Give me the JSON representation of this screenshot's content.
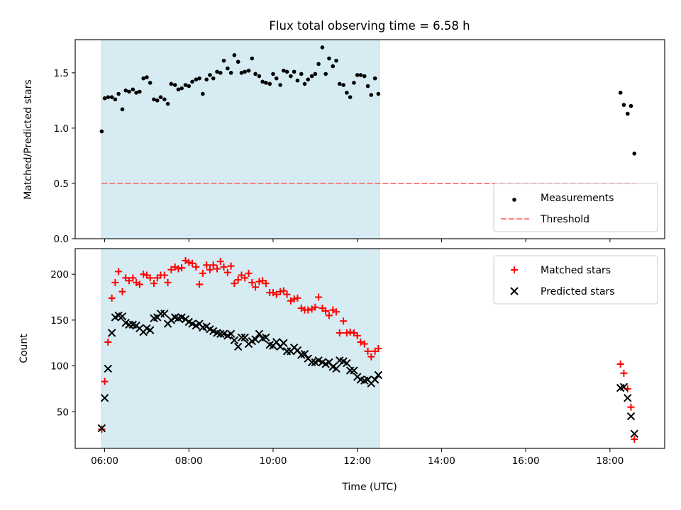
{
  "chart_data": {
    "title": "Flux total observing time = 6.58 h",
    "xlabel": "Time (UTC)",
    "x_unit": "hours UTC",
    "xlim": [
      5.3,
      19.3
    ],
    "x_ticks": [
      {
        "value": 6,
        "label": "06:00"
      },
      {
        "value": 8,
        "label": "08:00"
      },
      {
        "value": 10,
        "label": "10:00"
      },
      {
        "value": 12,
        "label": "12:00"
      },
      {
        "value": 14,
        "label": "14:00"
      },
      {
        "value": 16,
        "label": "16:00"
      },
      {
        "value": 18,
        "label": "18:00"
      }
    ],
    "shaded_span": {
      "x_start": 5.93,
      "x_end": 12.52,
      "color": "#add8e6"
    },
    "panels": [
      {
        "type": "scatter",
        "ylabel": "Matched/Predicted stars",
        "ylim": [
          0,
          1.8
        ],
        "y_ticks": [
          {
            "value": 0,
            "label": "0.0"
          },
          {
            "value": 0.5,
            "label": "0.5"
          },
          {
            "value": 1.0,
            "label": "1.0"
          },
          {
            "value": 1.5,
            "label": "1.5"
          }
        ],
        "legend_position": "lower-right",
        "series": [
          {
            "name": "Measurements",
            "marker": "dot",
            "color": "#000000",
            "x": [
              5.93,
              6.0,
              6.08,
              6.17,
              6.25,
              6.33,
              6.42,
              6.5,
              6.58,
              6.67,
              6.75,
              6.83,
              6.92,
              7.0,
              7.08,
              7.17,
              7.25,
              7.33,
              7.42,
              7.5,
              7.58,
              7.67,
              7.75,
              7.83,
              7.92,
              8.0,
              8.08,
              8.17,
              8.25,
              8.33,
              8.42,
              8.5,
              8.58,
              8.67,
              8.75,
              8.83,
              8.92,
              9.0,
              9.08,
              9.17,
              9.25,
              9.33,
              9.42,
              9.5,
              9.58,
              9.67,
              9.75,
              9.83,
              9.92,
              10.0,
              10.08,
              10.17,
              10.25,
              10.33,
              10.42,
              10.5,
              10.58,
              10.67,
              10.75,
              10.83,
              10.92,
              11.0,
              11.08,
              11.17,
              11.25,
              11.33,
              11.42,
              11.5,
              11.58,
              11.67,
              11.75,
              11.83,
              11.92,
              12.0,
              12.08,
              12.17,
              12.25,
              12.33,
              12.42,
              12.5,
              18.25,
              18.33,
              18.42,
              18.5,
              18.58
            ],
            "y": [
              0.97,
              1.27,
              1.28,
              1.28,
              1.26,
              1.31,
              1.17,
              1.34,
              1.33,
              1.35,
              1.32,
              1.33,
              1.45,
              1.46,
              1.41,
              1.26,
              1.25,
              1.28,
              1.26,
              1.22,
              1.4,
              1.39,
              1.35,
              1.36,
              1.39,
              1.38,
              1.42,
              1.44,
              1.45,
              1.31,
              1.44,
              1.48,
              1.45,
              1.51,
              1.5,
              1.61,
              1.54,
              1.5,
              1.66,
              1.6,
              1.5,
              1.51,
              1.52,
              1.63,
              1.49,
              1.47,
              1.42,
              1.41,
              1.4,
              1.49,
              1.45,
              1.39,
              1.52,
              1.51,
              1.47,
              1.51,
              1.43,
              1.49,
              1.4,
              1.44,
              1.47,
              1.49,
              1.58,
              1.73,
              1.49,
              1.63,
              1.56,
              1.61,
              1.4,
              1.39,
              1.32,
              1.28,
              1.41,
              1.48,
              1.48,
              1.47,
              1.38,
              1.3,
              1.45,
              1.31,
              1.32,
              1.21,
              1.13,
              1.2,
              0.77
            ]
          },
          {
            "name": "Threshold",
            "marker": "dashed-line",
            "color": "#ff7f7f",
            "x": [
              5.93,
              18.6
            ],
            "y": [
              0.5,
              0.5
            ]
          }
        ]
      },
      {
        "type": "scatter",
        "ylabel": "Count",
        "ylim": [
          10,
          228
        ],
        "y_ticks": [
          {
            "value": 50,
            "label": "50"
          },
          {
            "value": 100,
            "label": "100"
          },
          {
            "value": 150,
            "label": "150"
          },
          {
            "value": 200,
            "label": "200"
          }
        ],
        "legend_position": "upper-right",
        "series": [
          {
            "name": "Matched stars",
            "marker": "plus",
            "color": "#ff0000",
            "x": [
              5.93,
              6.0,
              6.08,
              6.17,
              6.25,
              6.33,
              6.42,
              6.5,
              6.58,
              6.67,
              6.75,
              6.83,
              6.92,
              7.0,
              7.08,
              7.17,
              7.25,
              7.33,
              7.42,
              7.5,
              7.58,
              7.67,
              7.75,
              7.83,
              7.92,
              8.0,
              8.08,
              8.17,
              8.25,
              8.33,
              8.42,
              8.5,
              8.58,
              8.67,
              8.75,
              8.83,
              8.92,
              9.0,
              9.08,
              9.17,
              9.25,
              9.33,
              9.42,
              9.5,
              9.58,
              9.67,
              9.75,
              9.83,
              9.92,
              10.0,
              10.08,
              10.17,
              10.25,
              10.33,
              10.42,
              10.5,
              10.58,
              10.67,
              10.75,
              10.83,
              10.92,
              11.0,
              11.08,
              11.17,
              11.25,
              11.33,
              11.42,
              11.5,
              11.58,
              11.67,
              11.75,
              11.83,
              11.92,
              12.0,
              12.08,
              12.17,
              12.25,
              12.33,
              12.42,
              12.5,
              18.25,
              18.33,
              18.42,
              18.5,
              18.58
            ],
            "y": [
              31,
              83,
              126,
              174,
              191,
              203,
              181,
              196,
              193,
              196,
              191,
              189,
              200,
              199,
              196,
              190,
              196,
              199,
              199,
              191,
              205,
              208,
              206,
              207,
              215,
              213,
              212,
              208,
              189,
              201,
              210,
              205,
              210,
              206,
              214,
              208,
              202,
              209,
              190,
              194,
              199,
              196,
              201,
              191,
              186,
              192,
              193,
              190,
              180,
              180,
              178,
              181,
              182,
              178,
              171,
              173,
              174,
              163,
              161,
              161,
              162,
              164,
              175,
              163,
              160,
              155,
              161,
              159,
              136,
              149,
              136,
              137,
              136,
              133,
              126,
              124,
              116,
              110,
              116,
              119,
              102,
              92,
              75,
              55,
              20
            ]
          },
          {
            "name": "Predicted stars",
            "marker": "x",
            "color": "#000000",
            "x": [
              5.93,
              6.0,
              6.08,
              6.17,
              6.25,
              6.33,
              6.42,
              6.5,
              6.58,
              6.67,
              6.75,
              6.83,
              6.92,
              7.0,
              7.08,
              7.17,
              7.25,
              7.33,
              7.42,
              7.5,
              7.58,
              7.67,
              7.75,
              7.83,
              7.92,
              8.0,
              8.08,
              8.17,
              8.25,
              8.33,
              8.42,
              8.5,
              8.58,
              8.67,
              8.75,
              8.83,
              8.92,
              9.0,
              9.08,
              9.17,
              9.25,
              9.33,
              9.42,
              9.5,
              9.58,
              9.67,
              9.75,
              9.83,
              9.92,
              10.0,
              10.08,
              10.17,
              10.25,
              10.33,
              10.42,
              10.5,
              10.58,
              10.67,
              10.75,
              10.83,
              10.92,
              11.0,
              11.08,
              11.17,
              11.25,
              11.33,
              11.42,
              11.5,
              11.58,
              11.67,
              11.75,
              11.83,
              11.92,
              12.0,
              12.08,
              12.17,
              12.25,
              12.33,
              12.42,
              12.5,
              18.25,
              18.33,
              18.42,
              18.5,
              18.58
            ],
            "y": [
              32,
              65,
              97,
              136,
              153,
              155,
              154,
              147,
              145,
              145,
              144,
              141,
              137,
              141,
              139,
              152,
              153,
              157,
              157,
              146,
              150,
              153,
              152,
              153,
              151,
              148,
              146,
              144,
              146,
              142,
              143,
              140,
              138,
              136,
              135,
              135,
              133,
              135,
              128,
              121,
              131,
              131,
              124,
              127,
              129,
              135,
              130,
              131,
              123,
              122,
              126,
              121,
              125,
              116,
              116,
              120,
              117,
              112,
              113,
              108,
              104,
              104,
              106,
              104,
              102,
              104,
              99,
              97,
              106,
              105,
              103,
              95,
              95,
              88,
              85,
              84,
              85,
              81,
              85,
              90,
              76,
              77,
              65,
              45,
              26
            ]
          }
        ]
      }
    ]
  }
}
